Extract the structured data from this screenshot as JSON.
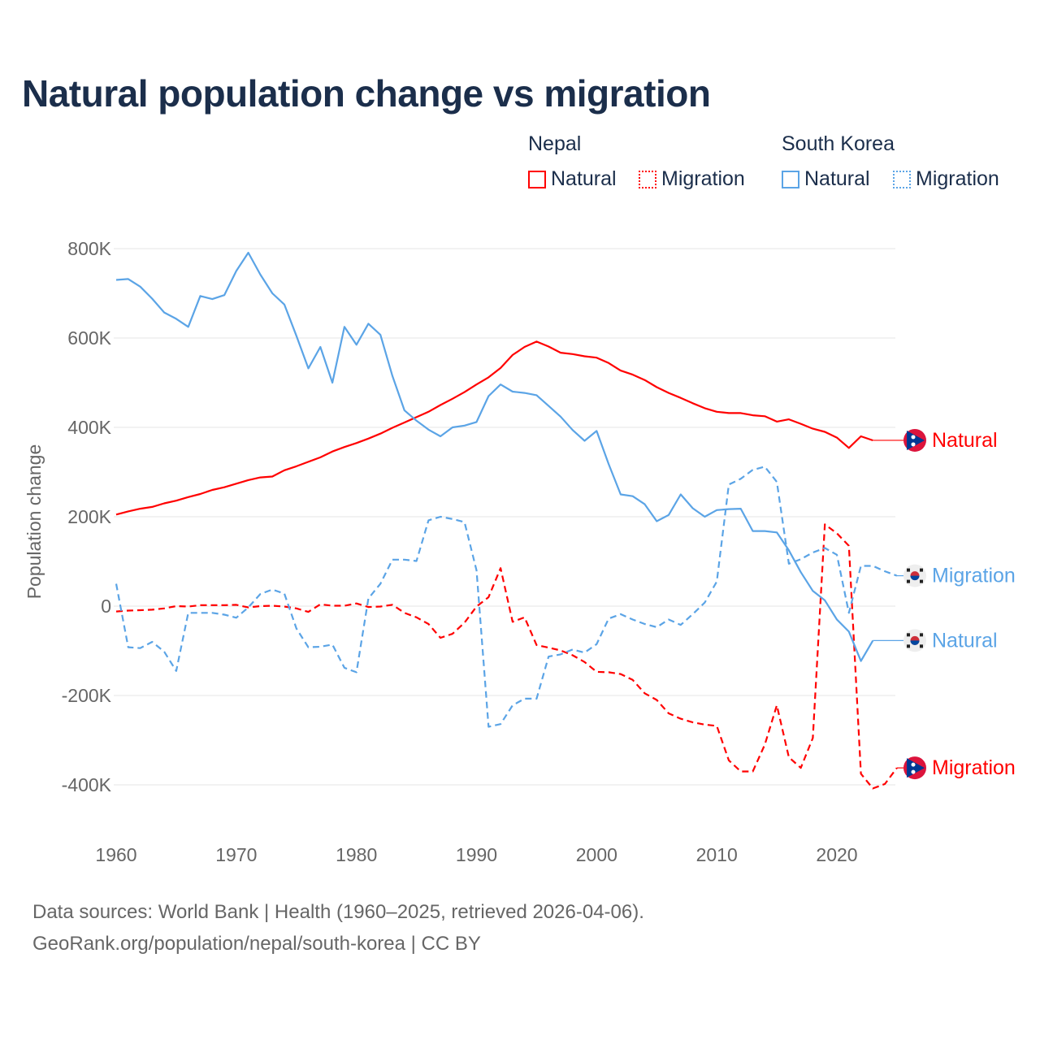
{
  "title": "Natural population change vs migration",
  "legend": {
    "groups": [
      {
        "name": "Nepal",
        "items": [
          {
            "label": "Natural",
            "style": "solid",
            "color": "#ff0000"
          },
          {
            "label": "Migration",
            "style": "dotted",
            "color": "#ff0000"
          }
        ]
      },
      {
        "name": "South Korea",
        "items": [
          {
            "label": "Natural",
            "style": "solid",
            "color": "#5ba4e6"
          },
          {
            "label": "Migration",
            "style": "dotted",
            "color": "#5ba4e6"
          }
        ]
      }
    ]
  },
  "footer": {
    "line1": "Data sources: World Bank | Health (1960–2025, retrieved 2026-04-06).",
    "line2": "GeoRank.org/population/nepal/south-korea | CC BY"
  },
  "chart_data": {
    "type": "line",
    "title": "Natural population change vs migration",
    "xlabel": "",
    "ylabel": "Population change",
    "xlim": [
      1960,
      2025
    ],
    "ylim": [
      -400000,
      800000
    ],
    "x_ticks": [
      1960,
      1970,
      1980,
      1990,
      2000,
      2010,
      2020
    ],
    "x_tick_labels": [
      "1960",
      "1970",
      "1980",
      "1990",
      "2000",
      "2010",
      "2020"
    ],
    "y_ticks": [
      800000,
      600000,
      400000,
      200000,
      0,
      -200000,
      -400000
    ],
    "y_tick_labels": [
      "800K",
      "600K",
      "400K",
      "200K",
      "0",
      "-200K",
      "-400K"
    ],
    "grid": true,
    "x_start": 1960,
    "series": [
      {
        "name": "Nepal Natural",
        "end_label": "Natural",
        "country": "Nepal",
        "color": "#ff0000",
        "dash": false,
        "values": [
          205,
          212,
          218,
          222,
          230,
          236,
          244,
          251,
          260,
          266,
          274,
          282,
          288,
          290,
          304,
          313,
          323,
          333,
          346,
          356,
          365,
          375,
          386,
          399,
          411,
          423,
          435,
          450,
          464,
          479,
          496,
          512,
          533,
          562,
          580,
          592,
          581,
          567,
          564,
          559,
          556,
          544,
          527,
          518,
          506,
          490,
          477,
          466,
          454,
          443,
          435,
          432,
          432,
          427,
          425,
          413,
          418,
          408,
          397,
          390,
          377,
          354,
          380,
          371
        ]
      },
      {
        "name": "Nepal Migration",
        "end_label": "Migration",
        "country": "Nepal",
        "color": "#ff0000",
        "dash": true,
        "values": [
          -12,
          -10,
          -9,
          -8,
          -5,
          0,
          -1,
          2,
          2,
          2,
          3,
          -3,
          0,
          1,
          -1,
          -5,
          -13,
          4,
          1,
          1,
          6,
          -2,
          -1,
          3,
          -15,
          -25,
          -40,
          -71,
          -62,
          -37,
          -1,
          20,
          85,
          -35,
          -25,
          -87,
          -93,
          -99,
          -110,
          -125,
          -147,
          -148,
          -152,
          -165,
          -195,
          -210,
          -240,
          -252,
          -260,
          -265,
          -268,
          -345,
          -370,
          -370,
          -310,
          -222,
          -338,
          -362,
          -295,
          183,
          163,
          135,
          -375,
          -408,
          -398,
          -362
        ]
      },
      {
        "name": "South Korea Natural",
        "end_label": "Natural",
        "country": "South Korea",
        "color": "#5ba4e6",
        "dash": false,
        "values": [
          730,
          732,
          715,
          688,
          657,
          643,
          625,
          694,
          687,
          696,
          750,
          791,
          742,
          700,
          675,
          605,
          532,
          580,
          500,
          625,
          585,
          632,
          607,
          515,
          438,
          415,
          395,
          380,
          400,
          404,
          412,
          470,
          496,
          480,
          477,
          472,
          448,
          424,
          394,
          370,
          392,
          318,
          250,
          246,
          228,
          190,
          204,
          250,
          219,
          200,
          215,
          217,
          218,
          168,
          168,
          165,
          125,
          76,
          34,
          13,
          -30,
          -57,
          -123,
          -77
        ]
      },
      {
        "name": "South Korea Migration",
        "end_label": "Migration",
        "country": "South Korea",
        "color": "#5ba4e6",
        "dash": true,
        "values": [
          50,
          -92,
          -94,
          -80,
          -102,
          -145,
          -15,
          -15,
          -15,
          -19,
          -26,
          -3,
          27,
          37,
          28,
          -50,
          -92,
          -91,
          -86,
          -138,
          -148,
          17,
          50,
          104,
          104,
          101,
          192,
          200,
          195,
          188,
          80,
          -270,
          -264,
          -222,
          -207,
          -207,
          -113,
          -108,
          -97,
          -104,
          -85,
          -28,
          -18,
          -30,
          -40,
          -47,
          -30,
          -42,
          -18,
          8,
          55,
          272,
          285,
          305,
          312,
          278,
          95,
          105,
          120,
          130,
          115,
          -15,
          90,
          90,
          78,
          68
        ]
      }
    ],
    "value_unit": "thousands"
  }
}
